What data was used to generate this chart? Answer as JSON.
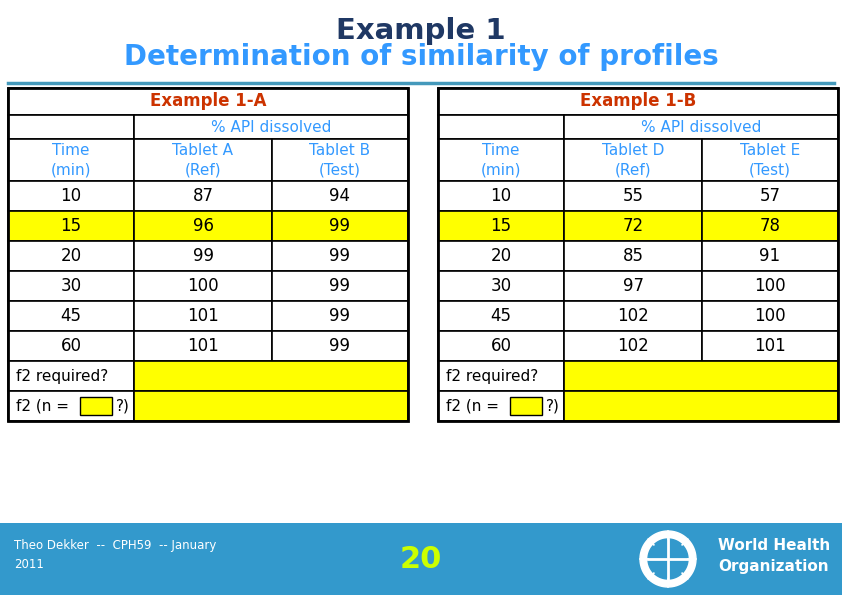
{
  "title_line1": "Example 1",
  "title_line2": "Determination of similarity of profiles",
  "title_color": "#1F3864",
  "subtitle_color": "#3399FF",
  "bg_color": "#FFFFFF",
  "yellow": "#FFFF00",
  "orange_box": "#FFFF00",
  "header_text_color": "#CC3300",
  "blue_col_color": "#3399FF",
  "blue_bar_color": "#3399CC",
  "table_A": {
    "header": "Example 1-A",
    "subheader": "% API dissolved",
    "col1_header": [
      "Time",
      "(min)"
    ],
    "col2_header": [
      "Tablet A",
      "(Ref)"
    ],
    "col3_header": [
      "Tablet B",
      "(Test)"
    ],
    "data": [
      [
        "10",
        "87",
        "94"
      ],
      [
        "15",
        "96",
        "99"
      ],
      [
        "20",
        "99",
        "99"
      ],
      [
        "30",
        "100",
        "99"
      ],
      [
        "45",
        "101",
        "99"
      ],
      [
        "60",
        "101",
        "99"
      ]
    ],
    "highlight_row": 1
  },
  "table_B": {
    "header": "Example 1-B",
    "subheader": "% API dissolved",
    "col1_header": [
      "Time",
      "(min)"
    ],
    "col2_header": [
      "Tablet D",
      "(Ref)"
    ],
    "col3_header": [
      "Tablet E",
      "(Test)"
    ],
    "data": [
      [
        "10",
        "55",
        "57"
      ],
      [
        "15",
        "72",
        "78"
      ],
      [
        "20",
        "85",
        "91"
      ],
      [
        "30",
        "97",
        "100"
      ],
      [
        "45",
        "102",
        "100"
      ],
      [
        "60",
        "102",
        "101"
      ]
    ],
    "highlight_row": 1
  },
  "footer_text_line1": "Theo Dekker  --  CPH59  -- January",
  "footer_text_line2": "2011",
  "footer_number": "20",
  "who_line1": "World Health",
  "who_line2": "Organization"
}
